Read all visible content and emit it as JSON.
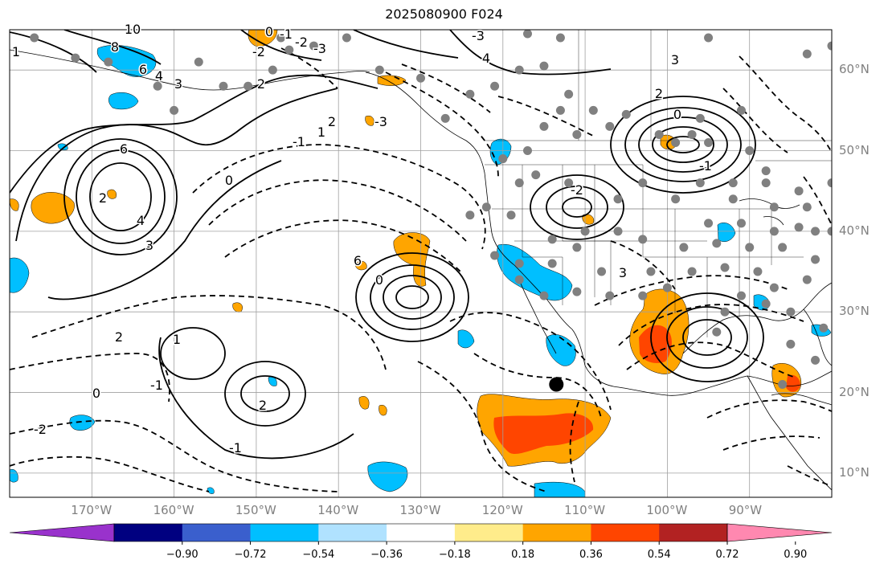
{
  "title": "2025080900 F024",
  "map": {
    "lon_range": [
      -180,
      -80
    ],
    "lat_range": [
      7,
      65
    ],
    "lon_labels": [
      "170°W",
      "160°W",
      "150°W",
      "140°W",
      "130°W",
      "120°W",
      "110°W",
      "100°W",
      "90°W"
    ],
    "lat_labels": [
      "60°N",
      "50°N",
      "40°N",
      "30°N",
      "20°N",
      "10°N"
    ],
    "marker_position": {
      "lon": -113.5,
      "lat": 21
    }
  },
  "contour_labels": [
    "10",
    "8",
    "6",
    "4",
    "3",
    "2",
    "1",
    "0",
    "-1",
    "-2",
    "-3",
    "6",
    "4",
    "3",
    "2",
    "1",
    "0",
    "-1",
    "-2",
    "-3",
    "4",
    "3",
    "2",
    "0",
    "-1",
    "-2",
    "-3",
    "2",
    "3",
    "6",
    "0",
    "2",
    "1",
    "2",
    "0",
    "-1",
    "-2",
    "-1"
  ],
  "colorbar": {
    "ticks": [
      "−0.90",
      "−0.72",
      "−0.54",
      "−0.36",
      "−0.18",
      "0.18",
      "0.36",
      "0.54",
      "0.72",
      "0.90"
    ],
    "colors": [
      "#9932cc",
      "#000080",
      "#3a5fcd",
      "#00bfff",
      "#b0e2ff",
      "#ffffff",
      "#ffec8b",
      "#ffa500",
      "#ff4500",
      "#b22222",
      "#ff88b0"
    ]
  },
  "colors": {
    "grid": "#a0a0a0",
    "stations": "#808080",
    "orange": "#ffa500",
    "red": "#ff4500",
    "blue": "#00bfff"
  }
}
